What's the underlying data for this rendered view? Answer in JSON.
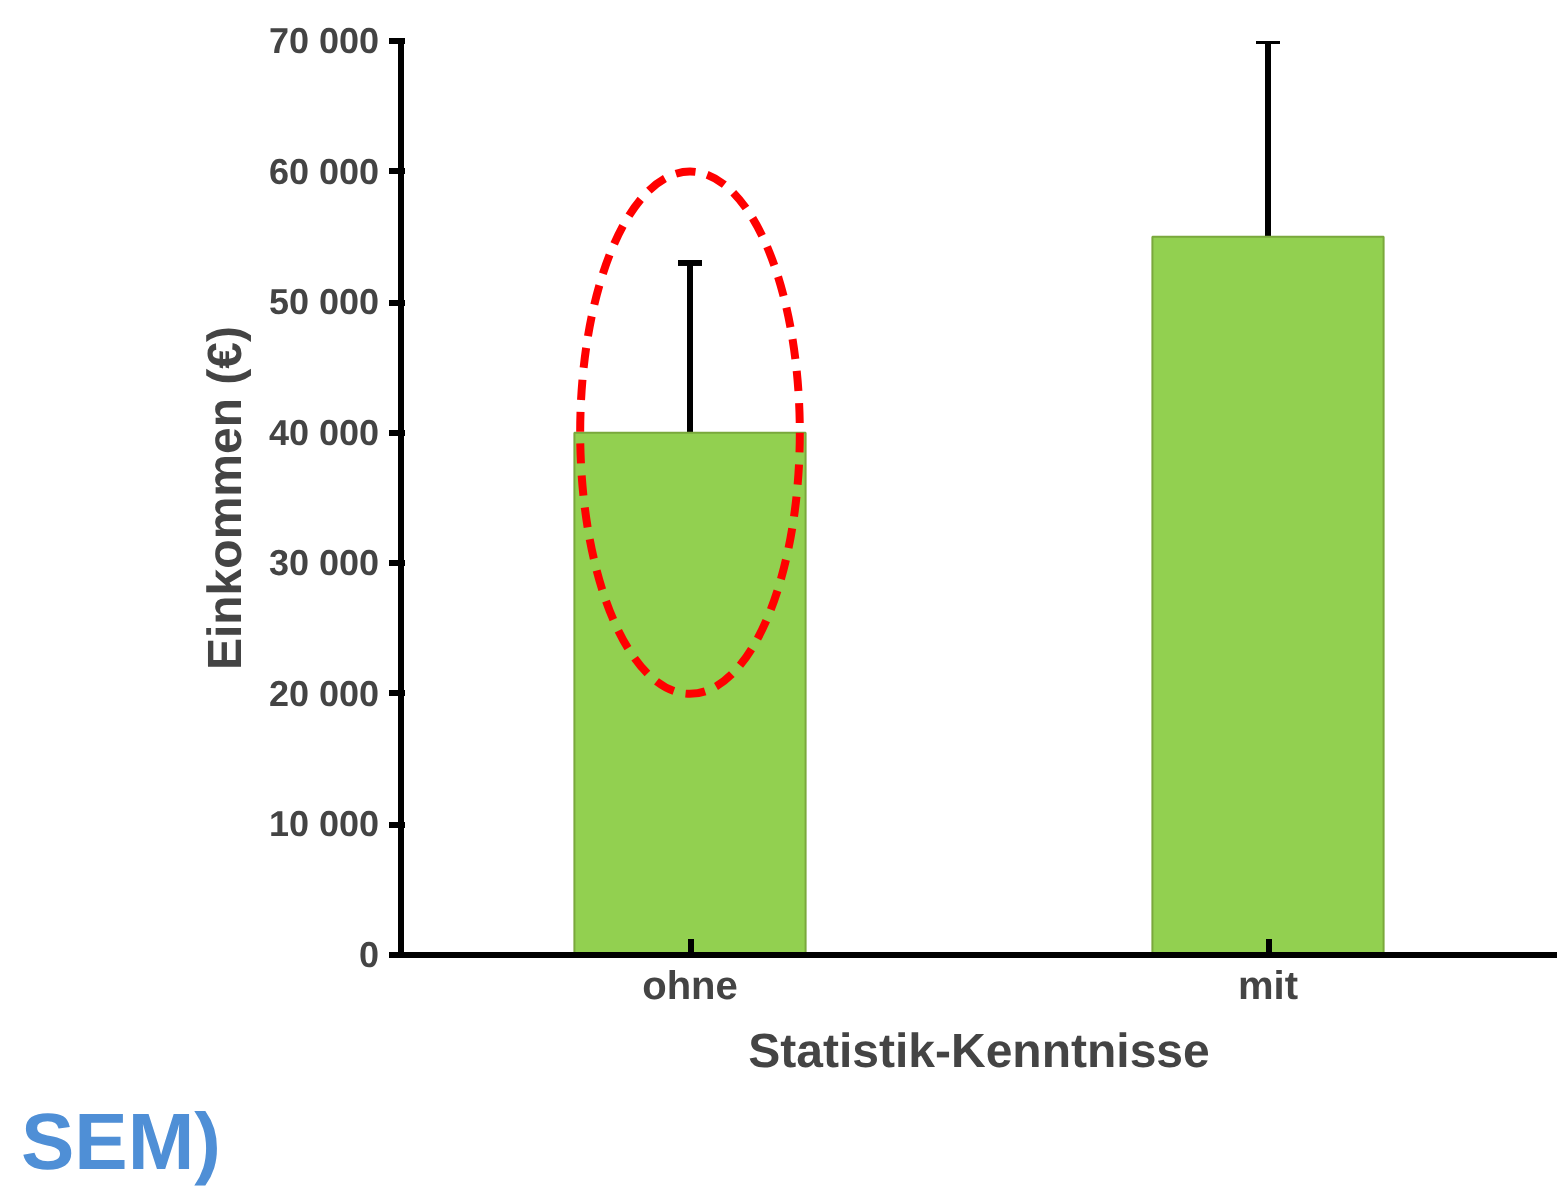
{
  "chart_data": {
    "type": "bar",
    "xlabel": "Statistik-Kenntnisse",
    "ylabel": "Einkommen (€)",
    "categories": [
      "ohne",
      "mit"
    ],
    "values": [
      40000,
      55000
    ],
    "errors": [
      13000,
      15000
    ],
    "color": "#92d050",
    "ylim": [
      0,
      70000
    ],
    "yticks": [
      {
        "value": 0,
        "label": "0"
      },
      {
        "value": 10000,
        "label": "10 000"
      },
      {
        "value": 20000,
        "label": "20 000"
      },
      {
        "value": 30000,
        "label": "30 000"
      },
      {
        "value": 40000,
        "label": "40 000"
      },
      {
        "value": 50000,
        "label": "50 000"
      },
      {
        "value": 60000,
        "label": "60 000"
      },
      {
        "value": 70000,
        "label": "70 000"
      }
    ],
    "grid": false,
    "annotations": [
      "SEM)"
    ]
  }
}
